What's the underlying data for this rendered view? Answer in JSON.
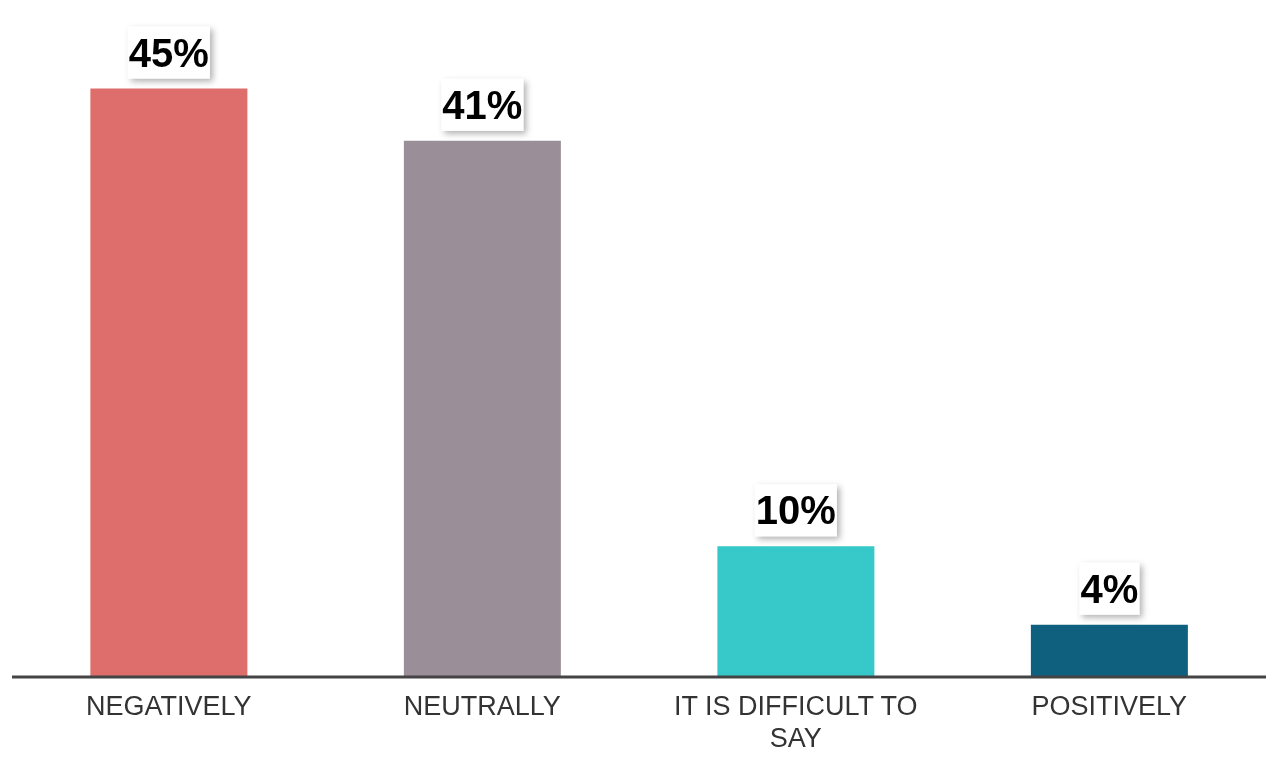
{
  "chart_data": {
    "type": "bar",
    "categories": [
      "NEGATIVELY",
      "NEUTRALLY",
      "IT IS DIFFICULT TO SAY",
      "POSITIVELY"
    ],
    "values": [
      45,
      41,
      10,
      4
    ],
    "colors": [
      "#dd6e6b",
      "#9a8f99",
      "#37c9c9",
      "#0f5f7e"
    ],
    "value_labels": [
      "45%",
      "41%",
      "10%",
      "4%"
    ],
    "grid": false,
    "legend": false
  }
}
